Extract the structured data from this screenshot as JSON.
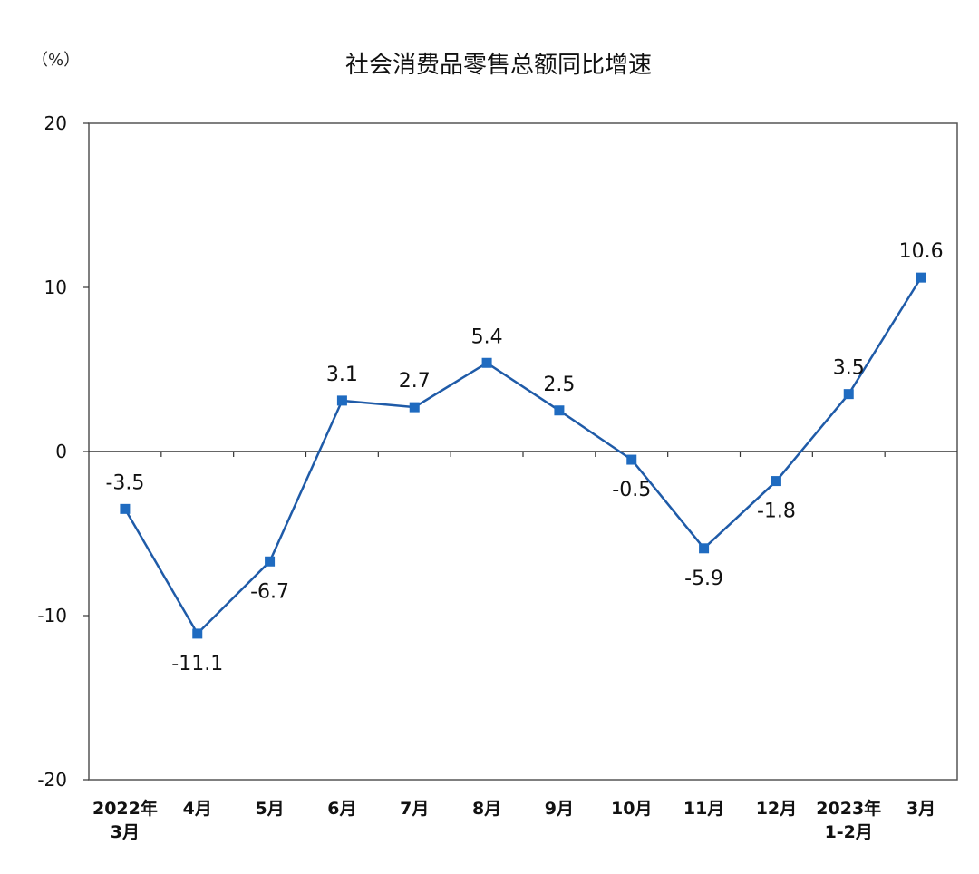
{
  "chart_data": {
    "type": "line",
    "title": "社会消费品零售总额同比增速",
    "unit_label": "（%）",
    "xlabel": "",
    "ylabel": "",
    "ylim": [
      -20,
      20
    ],
    "yticks": [
      "20",
      "10",
      "0",
      "-10",
      "-20"
    ],
    "grid": false,
    "categories": [
      [
        "2022年",
        "3月"
      ],
      [
        "4月"
      ],
      [
        "5月"
      ],
      [
        "6月"
      ],
      [
        "7月"
      ],
      [
        "8月"
      ],
      [
        "9月"
      ],
      [
        "10月"
      ],
      [
        "11月"
      ],
      [
        "12月"
      ],
      [
        "2023年",
        "1-2月"
      ],
      [
        "3月"
      ]
    ],
    "values": [
      -3.5,
      -11.1,
      -6.7,
      3.1,
      2.7,
      5.4,
      2.5,
      -0.5,
      -5.9,
      -1.8,
      3.5,
      10.6
    ],
    "value_labels": [
      "-3.5",
      "-11.1",
      "-6.7",
      "3.1",
      "2.7",
      "5.4",
      "2.5",
      "-0.5",
      "-5.9",
      "-1.8",
      "3.5",
      "10.6"
    ],
    "label_position": [
      "above",
      "below",
      "below",
      "above",
      "above",
      "above",
      "above",
      "below",
      "below",
      "below",
      "above",
      "above"
    ],
    "colors": {
      "line": "#1F5BA8",
      "marker": "#1F6BC0",
      "axis": "#333333",
      "frame": "#555555"
    }
  }
}
